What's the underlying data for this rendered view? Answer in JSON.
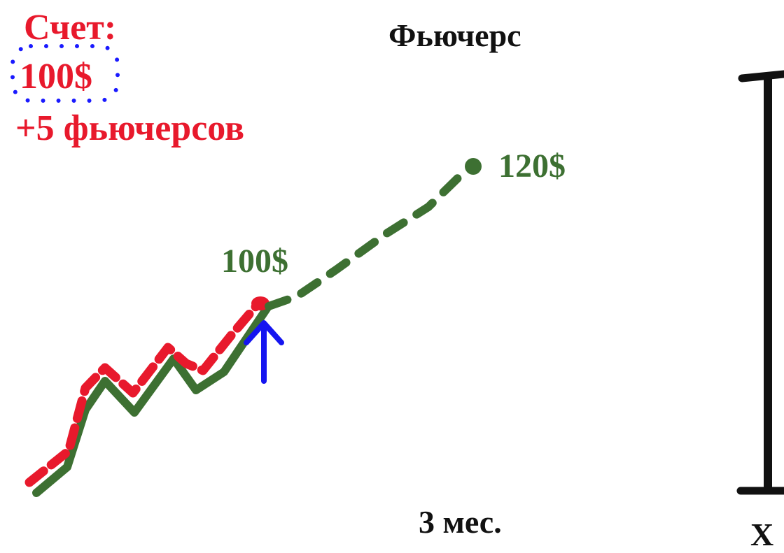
{
  "account": {
    "title": "Счет:",
    "value": "100$",
    "futures": "+5 фьючерсов"
  },
  "chart_title": "Фьючерс",
  "price_labels": {
    "current": "100$",
    "target": "120$"
  },
  "period_label": "3 мес.",
  "axis_end_label": "X",
  "colors": {
    "account_text": "#e8192c",
    "dotted_border": "#1a1aff",
    "price_line": "#3d7032",
    "expectation_line": "#e8192c",
    "arrow": "#1515f0",
    "title_text": "#111111",
    "bracket": "#111111"
  },
  "icons": {
    "entry_marker": "arrow-up-icon"
  }
}
